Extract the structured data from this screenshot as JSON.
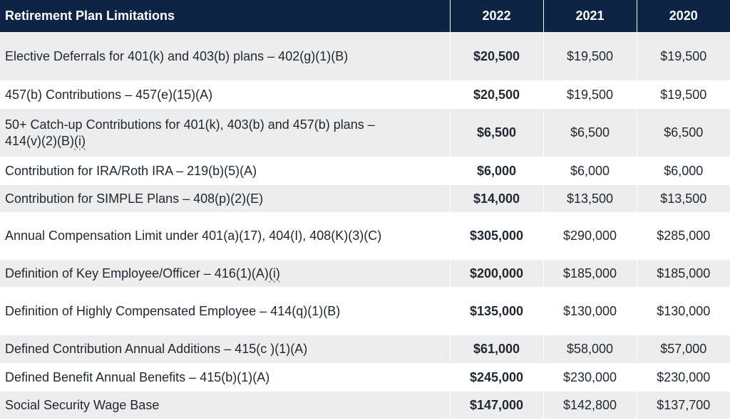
{
  "table": {
    "headers": {
      "label": "Retirement Plan Limitations",
      "year_1": "2022",
      "year_2": "2021",
      "year_3": "2020"
    },
    "rows": [
      {
        "label": "Elective Deferrals for 401(k) and 403(b) plans – 402(g)(1)(B)",
        "v2022": "$20,500",
        "v2021": "$19,500",
        "v2020": "$19,500"
      },
      {
        "label": "457(b) Contributions – 457(e)(15)(A)",
        "v2022": "$20,500",
        "v2021": "$19,500",
        "v2020": "$19,500"
      },
      {
        "label_line1": "50+ Catch-up Contributions for 401(k), 403(b) and 457(b) plans –",
        "label_line2_prefix": "414(v)(2)(B)",
        "label_line2_squiggle": "(i)",
        "v2022": "$6,500",
        "v2021": "$6,500",
        "v2020": "$6,500"
      },
      {
        "label": "Contribution for IRA/Roth IRA – 219(b)(5)(A)",
        "v2022": "$6,000",
        "v2021": "$6,000",
        "v2020": "$6,000"
      },
      {
        "label": "Contribution for SIMPLE Plans – 408(p)(2)(E)",
        "v2022": "$14,000",
        "v2021": "$13,500",
        "v2020": "$13,500"
      },
      {
        "label": "Annual Compensation Limit under 401(a)(17), 404(I), 408(K)(3)(C)",
        "v2022": "$305,000",
        "v2021": "$290,000",
        "v2020": "$285,000"
      },
      {
        "label_prefix": "Definition of Key Employee/Officer – 416(1)(A)",
        "label_squiggle": "(i)",
        "v2022": "$200,000",
        "v2021": "$185,000",
        "v2020": "$185,000"
      },
      {
        "label": "Definition of Highly Compensated Employee – 414(q)(1)(B)",
        "v2022": "$135,000",
        "v2021": "$130,000",
        "v2020": "$130,000"
      },
      {
        "label": "Defined Contribution Annual Additions – 415(c )(1)(A)",
        "v2022": "$61,000",
        "v2021": "$58,000",
        "v2020": "$57,000"
      },
      {
        "label": "Defined Benefit Annual Benefits – 415(b)(1)(A)",
        "v2022": "$245,000",
        "v2021": "$230,000",
        "v2020": "$230,000"
      },
      {
        "label": "Social Security Wage Base",
        "v2022": "$147,000",
        "v2021": "$142,800",
        "v2020": "$137,700"
      }
    ]
  },
  "colors": {
    "header_bg": "#0e2444",
    "header_text": "#ffffff",
    "row_shade": "#ededed",
    "row_plain": "#ffffff",
    "text": "#1f2730"
  }
}
